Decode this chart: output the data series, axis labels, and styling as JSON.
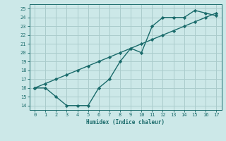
{
  "xlabel": "Humidex (Indice chaleur)",
  "xlim": [
    -0.5,
    17.5
  ],
  "ylim": [
    13.5,
    25.5
  ],
  "xticks": [
    0,
    1,
    2,
    3,
    4,
    5,
    6,
    7,
    8,
    9,
    10,
    11,
    12,
    13,
    14,
    15,
    16,
    17
  ],
  "yticks": [
    14,
    15,
    16,
    17,
    18,
    19,
    20,
    21,
    22,
    23,
    24,
    25
  ],
  "bg_color": "#cce8e8",
  "grid_color": "#aacccc",
  "line_color": "#1a6b6b",
  "line1_x": [
    0,
    1,
    2,
    3,
    4,
    5,
    6,
    7,
    8,
    9,
    10,
    11,
    12,
    13,
    14,
    15,
    16,
    17
  ],
  "line1_y": [
    16,
    16,
    15,
    14,
    14,
    14,
    16,
    17,
    19,
    20.5,
    20,
    23,
    24,
    24,
    24,
    24.8,
    24.5,
    24.2
  ],
  "line2_x": [
    0,
    1,
    2,
    3,
    4,
    5,
    6,
    7,
    8,
    9,
    10,
    11,
    12,
    13,
    14,
    15,
    16,
    17
  ],
  "line2_y": [
    16,
    16.5,
    17,
    17.5,
    18,
    18.5,
    19,
    19.5,
    20,
    20.5,
    21,
    21.5,
    22,
    22.5,
    23,
    23.5,
    24,
    24.5
  ]
}
